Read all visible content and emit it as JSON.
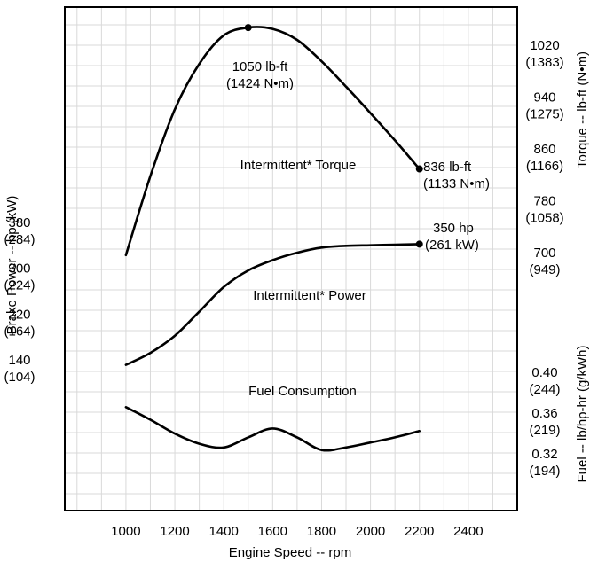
{
  "chart_data": {
    "type": "line",
    "xlabel": "Engine Speed -- rpm",
    "x_ticks": [
      1000,
      1200,
      1400,
      1600,
      1800,
      2000,
      2200,
      2400
    ],
    "xlim": [
      750,
      2600
    ],
    "grid": true,
    "left_axis": {
      "label": "Brake Power -- hp (kW)",
      "ticks": [
        {
          "value": 380,
          "line1": "380",
          "line2": "(284)"
        },
        {
          "value": 300,
          "line1": "300",
          "line2": "(224)"
        },
        {
          "value": 220,
          "line1": "220",
          "line2": "(164)"
        },
        {
          "value": 140,
          "line1": "140",
          "line2": "(104)"
        }
      ]
    },
    "right_axis_torque": {
      "label": "Torque -- lb-ft (N•m)",
      "ticks": [
        {
          "value": 1020,
          "line1": "1020",
          "line2": "(1383)"
        },
        {
          "value": 940,
          "line1": "940",
          "line2": "(1275)"
        },
        {
          "value": 860,
          "line1": "860",
          "line2": "(1166)"
        },
        {
          "value": 780,
          "line1": "780",
          "line2": "(1058)"
        },
        {
          "value": 700,
          "line1": "700",
          "line2": "(949)"
        }
      ]
    },
    "right_axis_fuel": {
      "label": "Fuel -- lb/hp-hr (g/kWh)",
      "ticks": [
        {
          "value": 0.4,
          "line1": "0.40",
          "line2": "(244)"
        },
        {
          "value": 0.36,
          "line1": "0.36",
          "line2": "(219)"
        },
        {
          "value": 0.32,
          "line1": "0.32",
          "line2": "(194)"
        }
      ]
    },
    "series": [
      {
        "name": "Intermittent* Torque",
        "axis": "torque",
        "points": [
          [
            1000,
            703
          ],
          [
            1100,
            825
          ],
          [
            1200,
            928
          ],
          [
            1300,
            998
          ],
          [
            1400,
            1042
          ],
          [
            1500,
            1054
          ],
          [
            1600,
            1052
          ],
          [
            1700,
            1035
          ],
          [
            1800,
            1002
          ],
          [
            1900,
            963
          ],
          [
            2000,
            922
          ],
          [
            2100,
            880
          ],
          [
            2200,
            836
          ]
        ],
        "markers": [
          [
            1500,
            1054
          ],
          [
            2200,
            836
          ]
        ]
      },
      {
        "name": "Intermittent* Power",
        "axis": "power",
        "points": [
          [
            1000,
            139
          ],
          [
            1100,
            160
          ],
          [
            1200,
            190
          ],
          [
            1300,
            232
          ],
          [
            1400,
            275
          ],
          [
            1500,
            304
          ],
          [
            1600,
            322
          ],
          [
            1700,
            335
          ],
          [
            1800,
            344
          ],
          [
            1900,
            347
          ],
          [
            2000,
            348
          ],
          [
            2100,
            349
          ],
          [
            2200,
            350
          ]
        ],
        "markers": [
          [
            2200,
            350
          ]
        ]
      },
      {
        "name": "Fuel Consumption",
        "axis": "fuel",
        "points": [
          [
            1000,
            0.3702
          ],
          [
            1100,
            0.3578
          ],
          [
            1200,
            0.3442
          ],
          [
            1300,
            0.3343
          ],
          [
            1400,
            0.3306
          ],
          [
            1500,
            0.3405
          ],
          [
            1600,
            0.3492
          ],
          [
            1700,
            0.3405
          ],
          [
            1800,
            0.3281
          ],
          [
            1900,
            0.3306
          ],
          [
            2000,
            0.3355
          ],
          [
            2100,
            0.3405
          ],
          [
            2200,
            0.3467
          ]
        ],
        "markers": []
      }
    ],
    "annotations": [
      {
        "line1": "1050 lb-ft",
        "line2": "(1424 N•m)"
      },
      {
        "line1": "836 lb-ft",
        "line2": "(1133 N•m)"
      },
      {
        "line1": "350 hp",
        "line2": "(261 kW)"
      }
    ]
  }
}
